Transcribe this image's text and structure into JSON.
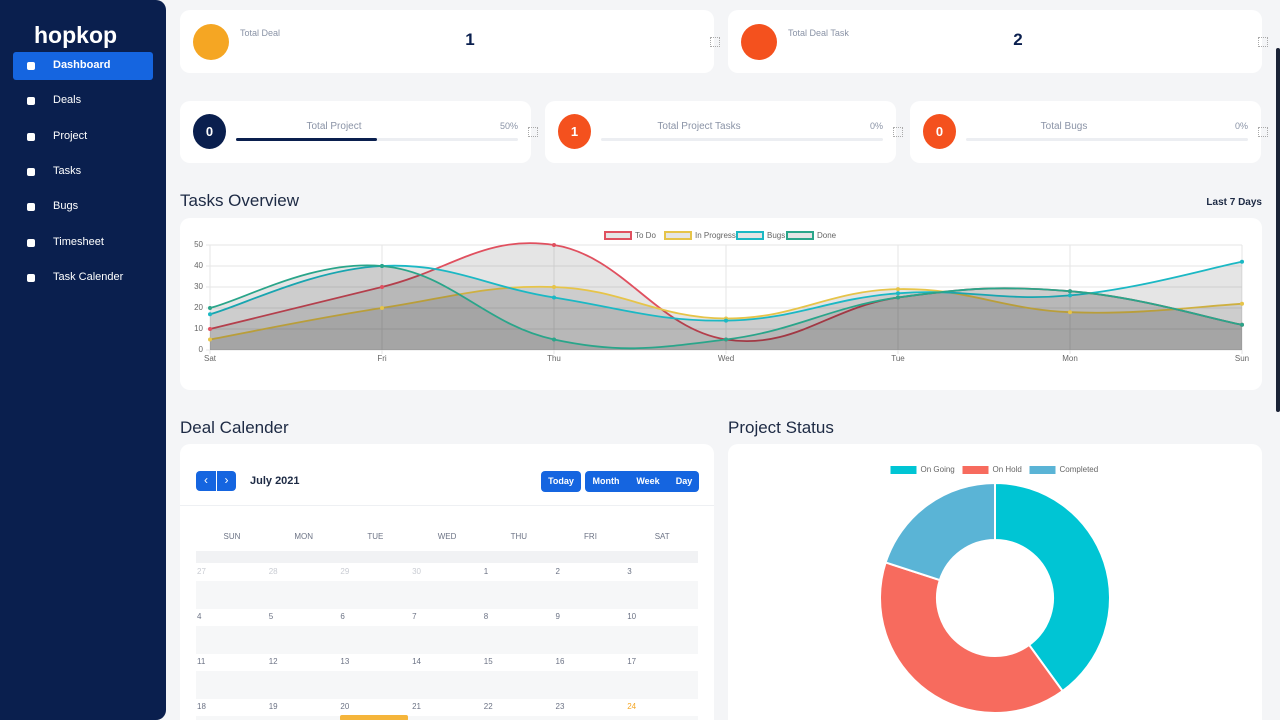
{
  "sidebar": {
    "brand": "hopkop",
    "menu": [
      "Dashboard",
      "Deals",
      "Project",
      "Tasks",
      "Bugs",
      "Timesheet",
      "Task Calender"
    ],
    "active_item": 0
  },
  "stat_cards": [
    {
      "label": "Total Deal",
      "value": 1,
      "color": "#f5a623"
    },
    {
      "label": "Total Deal Task",
      "value": 2,
      "color": "#f4511e"
    }
  ],
  "progress_cards": [
    {
      "label": "Total Project",
      "value": 0,
      "progress": {
        "value": 50,
        "label": "50%"
      },
      "color": "#0a1f4e"
    },
    {
      "label": "Total Project Tasks",
      "value": 1,
      "progress": {
        "value": 0,
        "label": "0%"
      },
      "color": "#f4511e"
    },
    {
      "label": "Total Bugs",
      "value": 0,
      "progress": {
        "value": 0,
        "label": "0%"
      },
      "color": "#f4511e"
    }
  ],
  "chart_data": [
    {
      "type": "line",
      "title": "Tasks Overview",
      "subtitle": "Last 7 Days",
      "categories": [
        "Sat",
        "Fri",
        "Thu",
        "Wed",
        "Tue",
        "Mon",
        "Sun"
      ],
      "series": [
        {
          "name": "To Do",
          "color": "#e0505f",
          "values": [
            10,
            30,
            50,
            5,
            25,
            28,
            12
          ]
        },
        {
          "name": "In Progress",
          "color": "#e6c449",
          "values": [
            5,
            20,
            30,
            15,
            29,
            18,
            22
          ]
        },
        {
          "name": "Bugs",
          "color": "#1bb8c4",
          "values": [
            17,
            40,
            25,
            14,
            27,
            26,
            42
          ]
        },
        {
          "name": "Done",
          "color": "#2aa58a",
          "values": [
            20,
            40,
            5,
            5,
            25,
            28,
            12
          ]
        }
      ],
      "ylim": [
        0,
        50
      ],
      "yticks": [
        0,
        10,
        20,
        30,
        40,
        50
      ],
      "grid": true,
      "fill": true
    },
    {
      "type": "doughnut",
      "title": "Project Status",
      "categories": [
        "On Going",
        "On Hold",
        "Completed"
      ],
      "values": [
        40,
        40,
        20
      ],
      "colors": [
        "#00c5d4",
        "#f76b5e",
        "#5ab4d6"
      ]
    }
  ],
  "calendar": {
    "title": "Deal Calender",
    "month_label": "July 2021",
    "nav_buttons": [
      "‹",
      "›"
    ],
    "buttons": [
      "Today",
      "Month",
      "Week",
      "Day"
    ],
    "weekdays": [
      "SUN",
      "MON",
      "TUE",
      "WED",
      "THU",
      "FRI",
      "SAT"
    ],
    "weeks": [
      [
        27,
        28,
        29,
        30,
        1,
        2,
        3
      ],
      [
        4,
        5,
        6,
        7,
        8,
        9,
        10
      ],
      [
        11,
        12,
        13,
        14,
        15,
        16,
        17
      ],
      [
        18,
        19,
        20,
        21,
        22,
        23,
        24
      ]
    ]
  }
}
